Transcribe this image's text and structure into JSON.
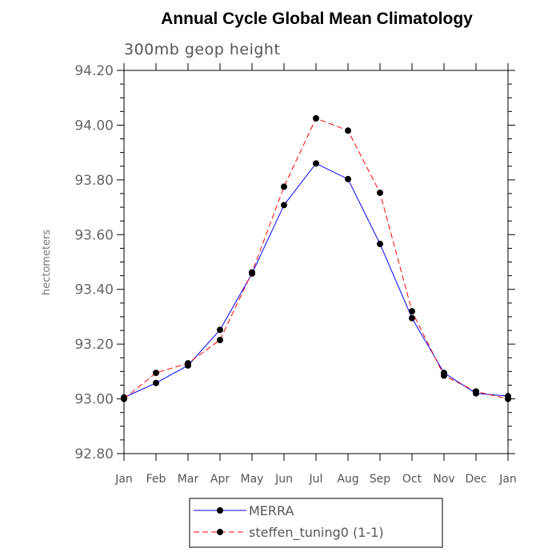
{
  "chart_data": {
    "type": "line",
    "title": "Annual Cycle Global Mean Climatology",
    "subtitle": "300mb geop height",
    "xlabel": "",
    "ylabel": "hectometers",
    "categories": [
      "Jan",
      "Feb",
      "Mar",
      "Apr",
      "May",
      "Jun",
      "Jul",
      "Aug",
      "Sep",
      "Oct",
      "Nov",
      "Dec",
      "Jan"
    ],
    "yticks": [
      "92.80",
      "93.00",
      "93.20",
      "93.40",
      "93.60",
      "93.80",
      "94.00",
      "94.20"
    ],
    "ylim": [
      92.8,
      94.2
    ],
    "grid": false,
    "legend_position": "bottom",
    "series": [
      {
        "name": "MERRA",
        "color": "#0000ff",
        "line_style": "solid",
        "marker": "filled-circle",
        "values": [
          93.005,
          93.058,
          93.122,
          93.252,
          93.458,
          93.708,
          93.86,
          93.803,
          93.566,
          93.295,
          93.095,
          93.02,
          93.01
        ]
      },
      {
        "name": "steffen_tuning0 (1-1)",
        "color": "#ff0000",
        "line_style": "dashed",
        "marker": "filled-circle",
        "values": [
          93.0,
          93.095,
          93.13,
          93.215,
          93.462,
          93.775,
          94.025,
          93.98,
          93.753,
          93.32,
          93.085,
          93.027,
          93.0
        ]
      }
    ]
  }
}
